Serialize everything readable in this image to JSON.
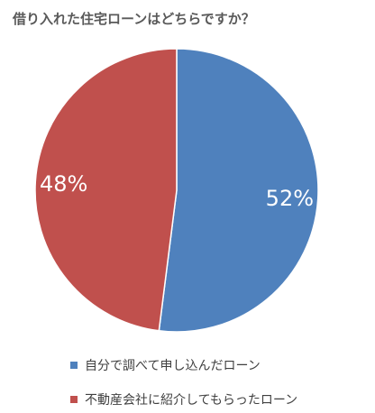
{
  "chart_data": {
    "type": "pie",
    "title": "借り入れた住宅ローンはどちらですか？",
    "slices": [
      {
        "label": "自分で調べて申し込んだローン",
        "value": 52,
        "value_label": "52%",
        "color": "#4F81BD"
      },
      {
        "label": "不動産会社に紹介してもらったローン",
        "value": 48,
        "value_label": "48%",
        "color": "#C0504D"
      }
    ],
    "legend": "bottom",
    "start_angle": "12 o'clock",
    "direction": "clockwise"
  }
}
